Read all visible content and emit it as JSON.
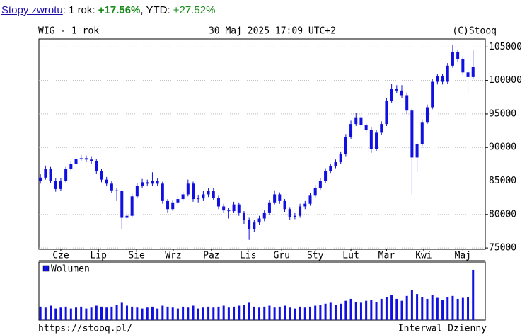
{
  "header": {
    "link": "Stopy zwrotu",
    "label_1y": ": 1 rok: ",
    "value_1y": "+17.56%",
    "label_ytd": ", YTD: ",
    "value_ytd": "+27.52%"
  },
  "chart_data": [
    {
      "type": "candlestick",
      "title": "WIG - 1 rok",
      "subtitle": "30 Maj 2025 17:09 UTC+2",
      "credit": "(C)Stooq",
      "color": "#1010e0",
      "xlim": [
        -0.3,
        87.4
      ],
      "xticks": [
        {
          "value": 4,
          "label": "Cze"
        },
        {
          "value": 11.4,
          "label": "Lip"
        },
        {
          "value": 18.9,
          "label": "Sie"
        },
        {
          "value": 26.1,
          "label": "Wrz"
        },
        {
          "value": 33.6,
          "label": "Paz"
        },
        {
          "value": 40.8,
          "label": "Lis"
        },
        {
          "value": 47.4,
          "label": "Gru"
        },
        {
          "value": 54,
          "label": "Sty"
        },
        {
          "value": 61,
          "label": "Lut"
        },
        {
          "value": 68,
          "label": "Mar"
        },
        {
          "value": 75.3,
          "label": "Kwi"
        },
        {
          "value": 83,
          "label": "Maj"
        }
      ],
      "ylim": [
        74800,
        106200
      ],
      "yticks": [
        75000,
        80000,
        85000,
        90000,
        95000,
        100000,
        105000
      ],
      "grid": true,
      "ohlc": [
        [
          85000,
          86000,
          84600,
          85500
        ],
        [
          85500,
          87300,
          85200,
          86800
        ],
        [
          86800,
          87100,
          84700,
          85000
        ],
        [
          85000,
          85400,
          83400,
          83800
        ],
        [
          83800,
          85400,
          83500,
          85000
        ],
        [
          85000,
          87100,
          84800,
          86800
        ],
        [
          86800,
          87900,
          86500,
          87500
        ],
        [
          87500,
          88800,
          87200,
          88300
        ],
        [
          88300,
          88900,
          87900,
          88400
        ],
        [
          88400,
          88800,
          87800,
          88200
        ],
        [
          88200,
          88700,
          87600,
          88000
        ],
        [
          88000,
          88300,
          86100,
          86500
        ],
        [
          86500,
          86800,
          84800,
          85200
        ],
        [
          85200,
          85600,
          84200,
          84600
        ],
        [
          84600,
          85000,
          83200,
          83600
        ],
        [
          83600,
          84000,
          82000,
          83500
        ],
        [
          83500,
          83600,
          77800,
          79500
        ],
        [
          79500,
          80600,
          78500,
          79800
        ],
        [
          79800,
          83100,
          79500,
          82700
        ],
        [
          82700,
          84700,
          82400,
          84300
        ],
        [
          84300,
          85300,
          84000,
          84800
        ],
        [
          84800,
          85200,
          84200,
          84600
        ],
        [
          84600,
          86300,
          84300,
          85000
        ],
        [
          85000,
          85400,
          84200,
          84600
        ],
        [
          84600,
          84900,
          81600,
          82000
        ],
        [
          82000,
          82300,
          80200,
          80800
        ],
        [
          80800,
          82200,
          80500,
          81800
        ],
        [
          81800,
          82700,
          81400,
          82300
        ],
        [
          82300,
          83400,
          82000,
          83000
        ],
        [
          83000,
          85200,
          82700,
          84600
        ],
        [
          84600,
          84900,
          81900,
          82300
        ],
        [
          82300,
          82900,
          81800,
          82400
        ],
        [
          82400,
          83500,
          82000,
          83000
        ],
        [
          83000,
          84000,
          82600,
          83500
        ],
        [
          83500,
          83900,
          82100,
          82500
        ],
        [
          82500,
          82800,
          80800,
          81200
        ],
        [
          81200,
          81600,
          80200,
          80600
        ],
        [
          80600,
          81000,
          79400,
          80500
        ],
        [
          80500,
          81900,
          80200,
          81500
        ],
        [
          81500,
          81800,
          79800,
          80200
        ],
        [
          80200,
          80500,
          78600,
          79200
        ],
        [
          79200,
          79500,
          76200,
          77800
        ],
        [
          77800,
          79200,
          77400,
          78800
        ],
        [
          78800,
          79800,
          78400,
          79400
        ],
        [
          79400,
          80600,
          79000,
          80200
        ],
        [
          80200,
          82200,
          79900,
          81800
        ],
        [
          81800,
          83600,
          81500,
          83000
        ],
        [
          83000,
          83300,
          81600,
          82000
        ],
        [
          82000,
          82300,
          80400,
          80800
        ],
        [
          80800,
          81100,
          79200,
          79600
        ],
        [
          79600,
          80200,
          79300,
          79800
        ],
        [
          79800,
          81600,
          79500,
          81200
        ],
        [
          81200,
          82000,
          80800,
          81600
        ],
        [
          81600,
          83200,
          81300,
          82800
        ],
        [
          82800,
          84400,
          82500,
          84000
        ],
        [
          84000,
          85400,
          83700,
          85000
        ],
        [
          85000,
          86900,
          84700,
          86500
        ],
        [
          86500,
          87600,
          86200,
          87200
        ],
        [
          87200,
          88200,
          86900,
          87800
        ],
        [
          87800,
          89400,
          87500,
          89000
        ],
        [
          89000,
          92000,
          88700,
          91600
        ],
        [
          91600,
          94000,
          91300,
          93500
        ],
        [
          93500,
          95200,
          93200,
          94500
        ],
        [
          94500,
          94900,
          92900,
          93300
        ],
        [
          93300,
          93700,
          92200,
          92600
        ],
        [
          92600,
          93000,
          89200,
          89800
        ],
        [
          89800,
          92600,
          89500,
          92200
        ],
        [
          92200,
          93900,
          91900,
          93500
        ],
        [
          93500,
          97400,
          93200,
          97000
        ],
        [
          97000,
          99500,
          96700,
          98800
        ],
        [
          98800,
          99300,
          98100,
          98500
        ],
        [
          98500,
          99300,
          97400,
          97800
        ],
        [
          97800,
          98200,
          95000,
          95500
        ],
        [
          95500,
          95900,
          83000,
          88500
        ],
        [
          88500,
          90900,
          86300,
          90500
        ],
        [
          90500,
          94200,
          90200,
          93800
        ],
        [
          93800,
          96400,
          93500,
          96000
        ],
        [
          96000,
          100200,
          95700,
          99800
        ],
        [
          99800,
          101000,
          99400,
          100600
        ],
        [
          100600,
          101000,
          99400,
          99800
        ],
        [
          99800,
          102600,
          99500,
          102200
        ],
        [
          102200,
          105300,
          101900,
          104200
        ],
        [
          104200,
          104600,
          102800,
          103200
        ],
        [
          103200,
          103600,
          100800,
          101200
        ],
        [
          101200,
          101600,
          98000,
          100500
        ],
        [
          100500,
          104600,
          100200,
          102000
        ]
      ]
    },
    {
      "type": "bar",
      "legend": "Wolumen",
      "color": "#1010e0",
      "ylim": [
        0,
        60
      ],
      "xlim": [
        -0.3,
        87.4
      ],
      "values": [
        14,
        13,
        15,
        12,
        13,
        14,
        12,
        13,
        14,
        12,
        13,
        15,
        14,
        13,
        14,
        16,
        18,
        15,
        14,
        13,
        12,
        13,
        14,
        12,
        15,
        14,
        13,
        12,
        14,
        13,
        15,
        12,
        13,
        14,
        13,
        14,
        15,
        13,
        14,
        15,
        16,
        18,
        14,
        13,
        14,
        15,
        13,
        14,
        15,
        13,
        12,
        14,
        13,
        14,
        15,
        16,
        17,
        18,
        16,
        17,
        20,
        22,
        19,
        18,
        20,
        21,
        19,
        22,
        24,
        26,
        22,
        20,
        25,
        31,
        27,
        24,
        22,
        26,
        23,
        21,
        24,
        25,
        22,
        23,
        24,
        52
      ]
    }
  ],
  "footer": {
    "url": "https://stooq.pl/",
    "interval": "Interwal Dzienny"
  }
}
